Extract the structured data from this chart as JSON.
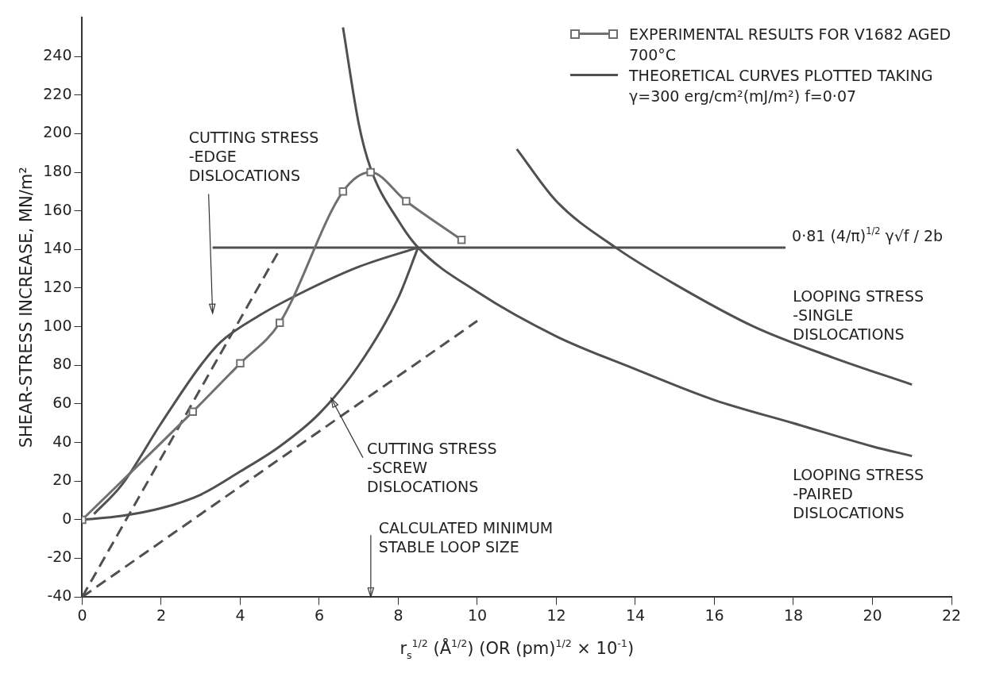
{
  "chart_data": {
    "type": "line",
    "xlabel": "r$_{s}$$^{1/2}$ (Å$^{1/2}$) (OR (pm)$^{1/2}$ × 10$^{-1}$)",
    "ylabel": "SHEAR-STRESS INCREASE, MN/m²",
    "xlim": [
      0,
      22
    ],
    "xticks": [
      0,
      2,
      4,
      6,
      8,
      10,
      12,
      14,
      16,
      18,
      20,
      22
    ],
    "ylim": [
      -40,
      260
    ],
    "yticks": [
      -40,
      -20,
      0,
      20,
      40,
      60,
      80,
      100,
      120,
      140,
      160,
      180,
      200,
      220,
      240
    ],
    "grid": false,
    "legend": "top right",
    "series": [
      {
        "name": "EXPERIMENTAL RESULTS FOR V1682 AGED 700°C",
        "color": "#707070",
        "marker": "square",
        "x": [
          0,
          2.8,
          4,
          5,
          6.6,
          7.3,
          8.2,
          9.6
        ],
        "values": [
          0,
          56,
          81,
          102,
          170,
          180,
          165,
          145
        ]
      },
      {
        "name": "THEORETICAL CURVES PLOTTED TAKING γ=300 erg/cm²(mJ/m²) f=0·07",
        "color": "#505050",
        "marker": "none",
        "line_style": "solid",
        "x": [
          0.3,
          1,
          2,
          3,
          3.5,
          4.5,
          5.5,
          7,
          8.5
        ],
        "values": [
          3,
          18,
          50,
          80,
          92,
          106,
          117,
          131,
          141
        ]
      },
      {
        "color": "#505050",
        "marker": "none",
        "line_style": "solid",
        "x": [
          0,
          1,
          2,
          3,
          4,
          5,
          6,
          7,
          8,
          8.5
        ],
        "values": [
          0,
          2,
          6,
          13,
          25,
          38,
          55,
          80,
          115,
          141
        ]
      },
      {
        "color": "#505050",
        "marker": "none",
        "line_style": "solid",
        "x": [
          6.6,
          7,
          7.3,
          8,
          8.5,
          10,
          12,
          14,
          16,
          18,
          20,
          21
        ],
        "values": [
          255,
          205,
          182,
          155,
          141,
          118,
          95,
          78,
          62,
          50,
          38,
          33
        ]
      },
      {
        "color": "#505050",
        "marker": "none",
        "line_style": "solid",
        "x": [
          11,
          12,
          13.5,
          15,
          17,
          19,
          21
        ],
        "values": [
          192,
          165,
          141,
          122,
          100,
          84,
          70
        ]
      },
      {
        "color": "#505050",
        "marker": "none",
        "line_style": "solid",
        "x": [
          3.3,
          17.8
        ],
        "values": [
          141,
          141
        ]
      },
      {
        "color": "#505050",
        "marker": "none",
        "line_style": "dashed",
        "x": [
          0,
          5
        ],
        "values": [
          -40,
          140
        ]
      },
      {
        "color": "#505050",
        "marker": "none",
        "line_style": "dashed",
        "x": [
          0,
          10
        ],
        "values": [
          -40,
          103
        ]
      }
    ],
    "annotations": [
      "CUTTING STRESS\n-EDGE\nDISLOCATIONS",
      {
        "text": "CUTTING STRESS\n-SCREW\nDISLOCATIONS",
        "x": 6.3,
        "y": 63
      },
      "CALCULATED MINIMUM\nSTABLE LOOP SIZE",
      {
        "text": "LOOPING STRESS\n-SINGLE\nDISLOCATIONS",
        "x": 21,
        "y": 70
      },
      {
        "text": "LOOPING STRESS\n-PAIRED\nDISLOCATIONS",
        "x": 21,
        "y": 33
      },
      {
        "text": "0·81 (4/π)$^{1/2}$ γ√f / 2b",
        "x": 17.8,
        "y": 141
      }
    ]
  }
}
